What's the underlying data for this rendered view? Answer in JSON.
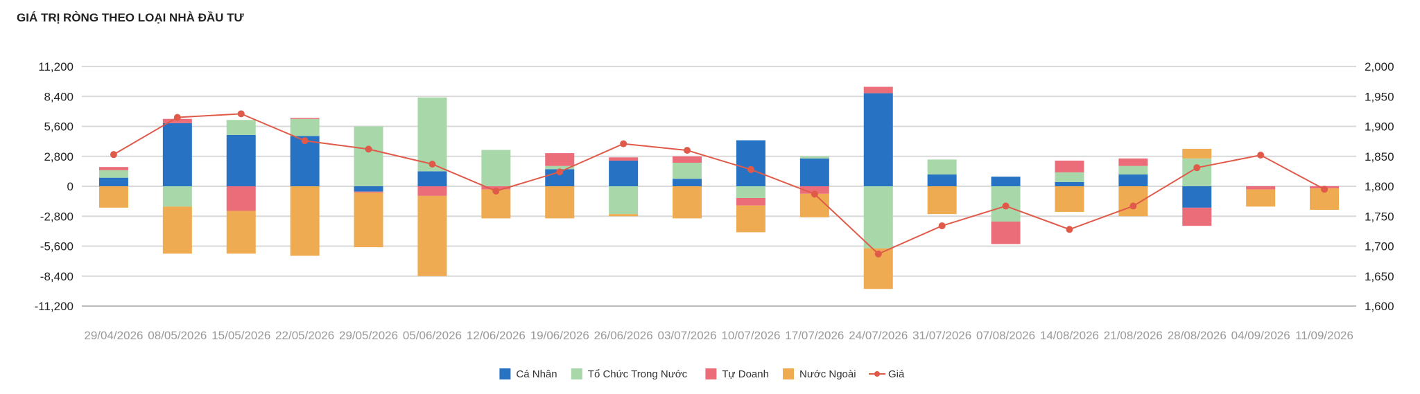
{
  "chart_data": {
    "type": "bar",
    "stacked": true,
    "title": "GIÁ TRỊ RÒNG THEO LOẠI NHÀ ĐẦU TƯ",
    "categories": [
      "29/04/2026",
      "08/05/2026",
      "15/05/2026",
      "22/05/2026",
      "29/05/2026",
      "05/06/2026",
      "12/06/2026",
      "19/06/2026",
      "26/06/2026",
      "03/07/2026",
      "10/07/2026",
      "17/07/2026",
      "24/07/2026",
      "31/07/2026",
      "07/08/2026",
      "14/08/2026",
      "21/08/2026",
      "28/08/2026",
      "04/09/2026",
      "11/09/2026"
    ],
    "y_left": {
      "min": -11200,
      "max": 11200,
      "ticks": [
        "11,200",
        "8,400",
        "5,600",
        "2,800",
        "0",
        "-2,800",
        "-5,600",
        "-8,400",
        "-11,200"
      ]
    },
    "y_right": {
      "min": 1600,
      "max": 2000,
      "ticks": [
        "2,000",
        "1,950",
        "1,900",
        "1,850",
        "1,800",
        "1,750",
        "1,700",
        "1,650",
        "1,600"
      ]
    },
    "series": [
      {
        "name": "Cá Nhân",
        "color": "#2872c4",
        "values": [
          800,
          5900,
          4800,
          4700,
          -500,
          1400,
          0,
          1600,
          2400,
          700,
          4300,
          2600,
          8700,
          1100,
          900,
          400,
          1100,
          -2000,
          0,
          0
        ]
      },
      {
        "name": "Tổ Chức Trong Nước",
        "color": "#a8d8aa",
        "values": [
          700,
          -1900,
          1400,
          1600,
          5600,
          6900,
          3400,
          300,
          -2600,
          1500,
          -1100,
          200,
          -5800,
          1400,
          -3300,
          900,
          800,
          2600,
          0,
          0
        ]
      },
      {
        "name": "Tự Doanh",
        "color": "#ec6d7a",
        "values": [
          300,
          400,
          -2300,
          100,
          -100,
          -900,
          -300,
          1200,
          300,
          600,
          -700,
          -700,
          600,
          0,
          -2100,
          1100,
          700,
          -1700,
          -300,
          -200
        ]
      },
      {
        "name": "Nước Ngoài",
        "color": "#eeab51",
        "values": [
          -2000,
          -4400,
          -4000,
          -6500,
          -5100,
          -7500,
          -2700,
          -3000,
          -200,
          -3000,
          -2500,
          -2200,
          -3800,
          -2600,
          0,
          -2400,
          -2800,
          900,
          -1600,
          -2000
        ]
      }
    ],
    "line": {
      "name": "Giá",
      "color": "#e05a4a",
      "values": [
        1853,
        1915,
        1921,
        1876,
        1862,
        1837,
        1792,
        1824,
        1871,
        1860,
        1828,
        1787,
        1687,
        1734,
        1767,
        1728,
        1767,
        1831,
        1852,
        1795
      ]
    },
    "grid": true,
    "legend_position": "bottom-center"
  }
}
